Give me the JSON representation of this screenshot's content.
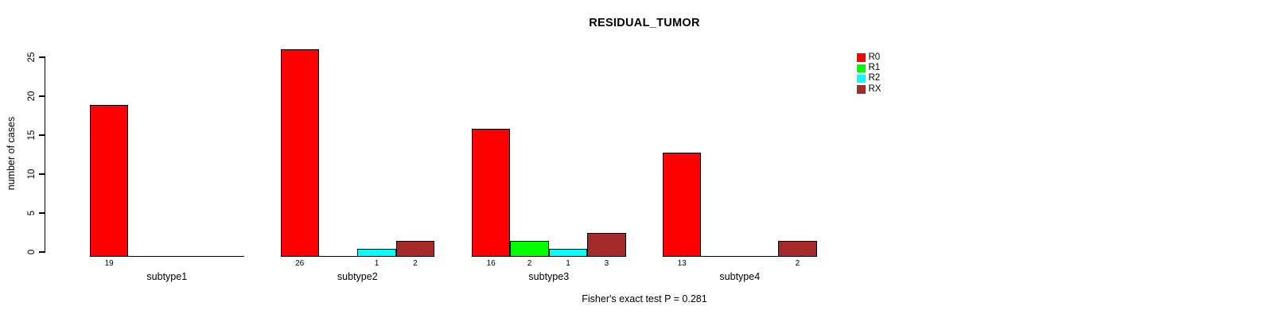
{
  "chart_data": {
    "type": "bar",
    "title": "RESIDUAL_TUMOR",
    "ylabel": "number of cases",
    "xlabel": "",
    "annotation": "Fisher's exact test P = 0.281",
    "categories": [
      "subtype1",
      "subtype2",
      "subtype3",
      "subtype4"
    ],
    "series": [
      {
        "name": "R0",
        "color": "#FF0000",
        "values": [
          19,
          26,
          16,
          13
        ]
      },
      {
        "name": "R1",
        "color": "#00FF00",
        "values": [
          0,
          0,
          2,
          0
        ]
      },
      {
        "name": "R2",
        "color": "#00FFFF",
        "values": [
          0,
          1,
          1,
          0
        ]
      },
      {
        "name": "RX",
        "color": "#A52A2A",
        "values": [
          0,
          2,
          3,
          2
        ]
      }
    ],
    "yticks": [
      0,
      5,
      10,
      15,
      20,
      25
    ],
    "ylim": [
      0,
      26
    ],
    "grid": false,
    "legend_position": "top-right",
    "value_labels": "nonzero bar values printed below axis",
    "axis_color": "#000000",
    "background_color": "#FFFFFF"
  }
}
